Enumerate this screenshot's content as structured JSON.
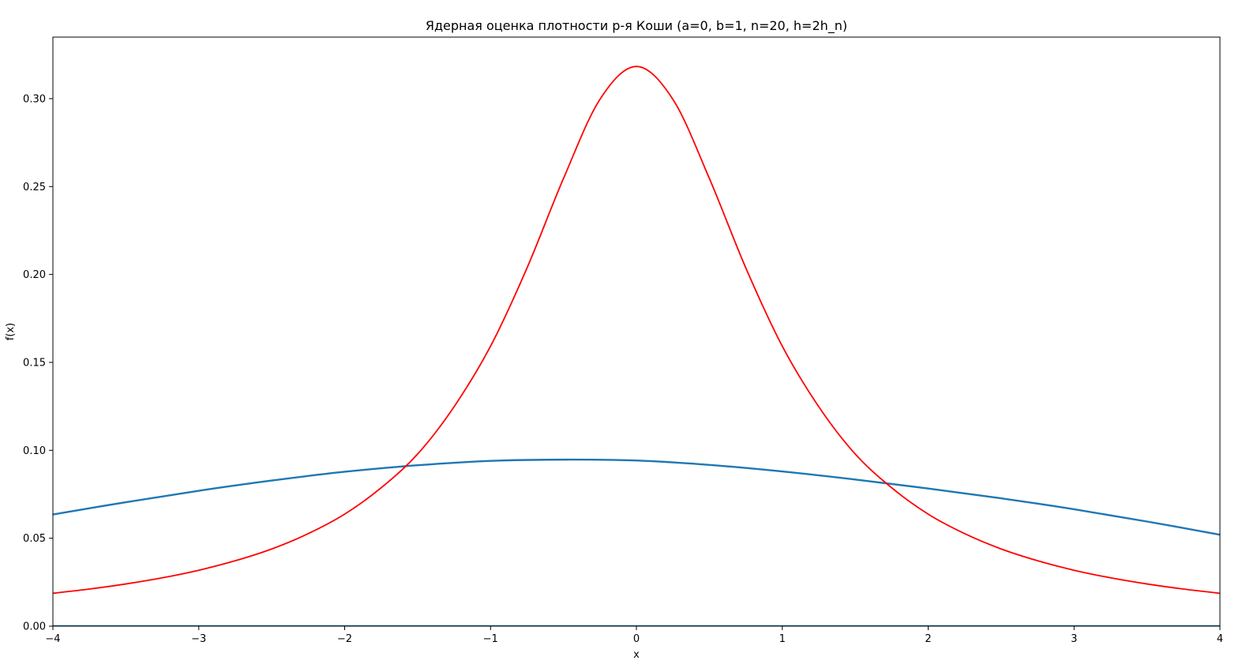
{
  "chart_data": {
    "type": "line",
    "title": "Ядерная оценка плотности р-я Коши (a=0, b=1, n=20, h=2h_n)",
    "xlabel": "x",
    "ylabel": "f(x)",
    "xlim": [
      -4,
      4
    ],
    "ylim": [
      0,
      0.335
    ],
    "xticks": [
      -4,
      -3,
      -2,
      -1,
      0,
      1,
      2,
      3,
      4
    ],
    "xtick_labels": [
      "−4",
      "−3",
      "−2",
      "−1",
      "0",
      "1",
      "2",
      "3",
      "4"
    ],
    "yticks": [
      0.0,
      0.05,
      0.1,
      0.15,
      0.2,
      0.25,
      0.3
    ],
    "ytick_labels": [
      "0.00",
      "0.05",
      "0.10",
      "0.15",
      "0.20",
      "0.25",
      "0.30"
    ],
    "grid": false,
    "series": [
      {
        "color": "#1f77b4",
        "x": [
          -4.0,
          -3.5,
          -3.0,
          -2.5,
          -2.0,
          -1.5,
          -1.0,
          -0.5,
          0.0,
          0.5,
          1.0,
          1.5,
          2.0,
          2.5,
          3.0,
          3.5,
          4.0
        ],
        "y": [
          0.0635,
          0.0705,
          0.077,
          0.0828,
          0.0878,
          0.0915,
          0.094,
          0.0947,
          0.0942,
          0.0917,
          0.088,
          0.0834,
          0.0783,
          0.0727,
          0.0665,
          0.0595,
          0.052
        ]
      },
      {
        "color": "#ff0000",
        "x": [
          -4.0,
          -3.75,
          -3.5,
          -3.25,
          -3.0,
          -2.75,
          -2.5,
          -2.25,
          -2.0,
          -1.75,
          -1.5,
          -1.25,
          -1.0,
          -0.75,
          -0.5,
          -0.25,
          0.0,
          0.25,
          0.5,
          0.75,
          1.0,
          1.25,
          1.5,
          1.75,
          2.0,
          2.25,
          2.5,
          2.75,
          3.0,
          3.25,
          3.5,
          3.75,
          4.0
        ],
        "y": [
          0.0187,
          0.0211,
          0.024,
          0.0275,
          0.0318,
          0.0372,
          0.0439,
          0.0526,
          0.0637,
          0.0787,
          0.0979,
          0.1248,
          0.1592,
          0.2037,
          0.2546,
          0.2996,
          0.3183,
          0.2996,
          0.2546,
          0.2037,
          0.1592,
          0.1248,
          0.0979,
          0.0787,
          0.0637,
          0.0526,
          0.0439,
          0.0372,
          0.0318,
          0.0275,
          0.024,
          0.0211,
          0.0187
        ]
      },
      {
        "color": "#1f77b4",
        "x": [
          -4,
          4
        ],
        "y": [
          0,
          0
        ]
      }
    ]
  }
}
